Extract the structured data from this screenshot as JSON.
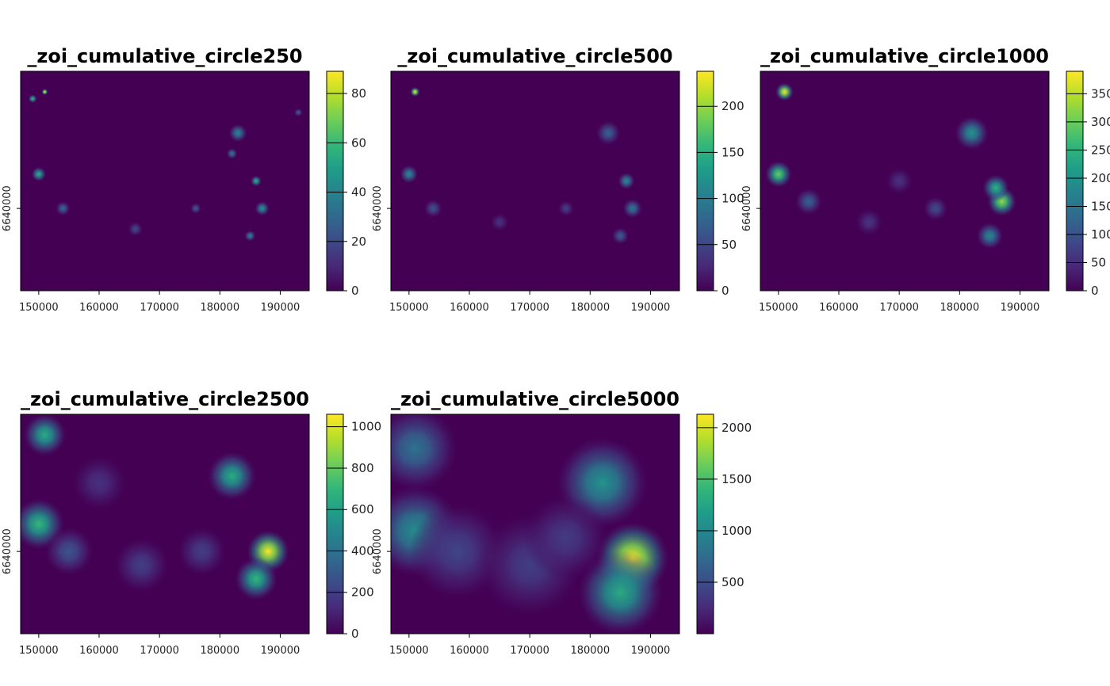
{
  "chart_data": [
    {
      "type": "heatmap",
      "title": "_zoi_cumulative_circle250",
      "x_ticks": [
        150000,
        160000,
        170000,
        180000,
        190000
      ],
      "xlim": [
        147000,
        194800
      ],
      "y_ticks": [
        6640000
      ],
      "legend": {
        "ticks": [
          0,
          20,
          40,
          60,
          80
        ],
        "range": [
          0,
          89
        ],
        "position": "right"
      },
      "hotspots": [
        {
          "x": 151000,
          "y": 6657000,
          "value": 89,
          "radius": 500
        },
        {
          "x": 149000,
          "y": 6656000,
          "value": 60,
          "radius": 700
        },
        {
          "x": 150000,
          "y": 6645000,
          "value": 55,
          "radius": 1200
        },
        {
          "x": 186000,
          "y": 6644000,
          "value": 55,
          "radius": 900
        },
        {
          "x": 187000,
          "y": 6640000,
          "value": 45,
          "radius": 1200
        },
        {
          "x": 183000,
          "y": 6651000,
          "value": 40,
          "radius": 1500
        },
        {
          "x": 182000,
          "y": 6648000,
          "value": 35,
          "radius": 900
        },
        {
          "x": 185000,
          "y": 6636000,
          "value": 40,
          "radius": 900
        },
        {
          "x": 154000,
          "y": 6640000,
          "value": 30,
          "radius": 1200
        },
        {
          "x": 176000,
          "y": 6640000,
          "value": 25,
          "radius": 900
        },
        {
          "x": 193000,
          "y": 6654000,
          "value": 25,
          "radius": 700
        },
        {
          "x": 166000,
          "y": 6637000,
          "value": 20,
          "radius": 1200
        }
      ]
    },
    {
      "type": "heatmap",
      "title": "_zoi_cumulative_circle500",
      "x_ticks": [
        150000,
        160000,
        170000,
        180000,
        190000
      ],
      "xlim": [
        147000,
        194800
      ],
      "y_ticks": [
        6640000
      ],
      "legend": {
        "ticks": [
          0,
          50,
          100,
          150,
          200
        ],
        "range": [
          0,
          238
        ],
        "position": "right"
      },
      "hotspots": [
        {
          "x": 151000,
          "y": 6657000,
          "value": 238,
          "radius": 800
        },
        {
          "x": 150000,
          "y": 6645000,
          "value": 110,
          "radius": 1500
        },
        {
          "x": 186000,
          "y": 6644000,
          "value": 110,
          "radius": 1400
        },
        {
          "x": 187000,
          "y": 6640000,
          "value": 95,
          "radius": 1600
        },
        {
          "x": 183000,
          "y": 6651000,
          "value": 75,
          "radius": 2000
        },
        {
          "x": 185000,
          "y": 6636000,
          "value": 70,
          "radius": 1400
        },
        {
          "x": 154000,
          "y": 6640000,
          "value": 60,
          "radius": 1500
        },
        {
          "x": 176000,
          "y": 6640000,
          "value": 45,
          "radius": 1300
        },
        {
          "x": 165000,
          "y": 6638000,
          "value": 35,
          "radius": 1500
        }
      ]
    },
    {
      "type": "heatmap",
      "title": "_zoi_cumulative_circle1000",
      "x_ticks": [
        150000,
        160000,
        170000,
        180000,
        190000
      ],
      "xlim": [
        147000,
        194800
      ],
      "y_ticks": [
        6640000
      ],
      "legend": {
        "ticks": [
          0,
          50,
          100,
          150,
          200,
          250,
          300,
          350
        ],
        "range": [
          0,
          390
        ],
        "position": "right"
      },
      "hotspots": [
        {
          "x": 151000,
          "y": 6657000,
          "value": 390,
          "radius": 1500
        },
        {
          "x": 150000,
          "y": 6645000,
          "value": 300,
          "radius": 2200
        },
        {
          "x": 187000,
          "y": 6641000,
          "value": 330,
          "radius": 2400
        },
        {
          "x": 186000,
          "y": 6643000,
          "value": 250,
          "radius": 2200
        },
        {
          "x": 182000,
          "y": 6651000,
          "value": 200,
          "radius": 2800
        },
        {
          "x": 185000,
          "y": 6636000,
          "value": 180,
          "radius": 2200
        },
        {
          "x": 155000,
          "y": 6641000,
          "value": 120,
          "radius": 2200
        },
        {
          "x": 176000,
          "y": 6640000,
          "value": 90,
          "radius": 2000
        },
        {
          "x": 165000,
          "y": 6638000,
          "value": 60,
          "radius": 2200
        },
        {
          "x": 170000,
          "y": 6644000,
          "value": 55,
          "radius": 2200
        }
      ]
    },
    {
      "type": "heatmap",
      "title": "_zoi_cumulative_circle2500",
      "x_ticks": [
        150000,
        160000,
        170000,
        180000,
        190000
      ],
      "xlim": [
        147000,
        194800
      ],
      "y_ticks": [
        6640000
      ],
      "legend": {
        "ticks": [
          0,
          200,
          400,
          600,
          800,
          1000
        ],
        "range": [
          0,
          1060
        ],
        "position": "right"
      },
      "hotspots": [
        {
          "x": 188000,
          "y": 6640000,
          "value": 1060,
          "radius": 3500
        },
        {
          "x": 186000,
          "y": 6636000,
          "value": 700,
          "radius": 3500
        },
        {
          "x": 182000,
          "y": 6651000,
          "value": 650,
          "radius": 4000
        },
        {
          "x": 150000,
          "y": 6644000,
          "value": 700,
          "radius": 4200
        },
        {
          "x": 151000,
          "y": 6657000,
          "value": 650,
          "radius": 3500
        },
        {
          "x": 155000,
          "y": 6640000,
          "value": 280,
          "radius": 4000
        },
        {
          "x": 167000,
          "y": 6638000,
          "value": 200,
          "radius": 4500
        },
        {
          "x": 177000,
          "y": 6640000,
          "value": 200,
          "radius": 4000
        },
        {
          "x": 160000,
          "y": 6650000,
          "value": 150,
          "radius": 4500
        }
      ]
    },
    {
      "type": "heatmap",
      "title": "_zoi_cumulative_circle5000",
      "x_ticks": [
        150000,
        160000,
        170000,
        180000,
        190000
      ],
      "xlim": [
        147000,
        194800
      ],
      "y_ticks": [
        6640000
      ],
      "legend": {
        "ticks": [
          500,
          1000,
          1500,
          2000
        ],
        "range": [
          0,
          2130
        ],
        "position": "right"
      },
      "hotspots": [
        {
          "x": 187000,
          "y": 6639000,
          "value": 2130,
          "radius": 6000
        },
        {
          "x": 185000,
          "y": 6634000,
          "value": 1300,
          "radius": 7000
        },
        {
          "x": 182000,
          "y": 6650000,
          "value": 1100,
          "radius": 7500
        },
        {
          "x": 151000,
          "y": 6643000,
          "value": 1050,
          "radius": 7500
        },
        {
          "x": 151000,
          "y": 6655000,
          "value": 800,
          "radius": 7000
        },
        {
          "x": 158000,
          "y": 6640000,
          "value": 450,
          "radius": 8000
        },
        {
          "x": 170000,
          "y": 6638000,
          "value": 400,
          "radius": 8500
        },
        {
          "x": 176000,
          "y": 6642000,
          "value": 380,
          "radius": 7000
        }
      ]
    }
  ],
  "colors": {
    "viridis": [
      "#440154",
      "#482878",
      "#3e4989",
      "#31688e",
      "#26828e",
      "#1f9e89",
      "#35b779",
      "#6ece58",
      "#b5de2b",
      "#fde725"
    ]
  }
}
